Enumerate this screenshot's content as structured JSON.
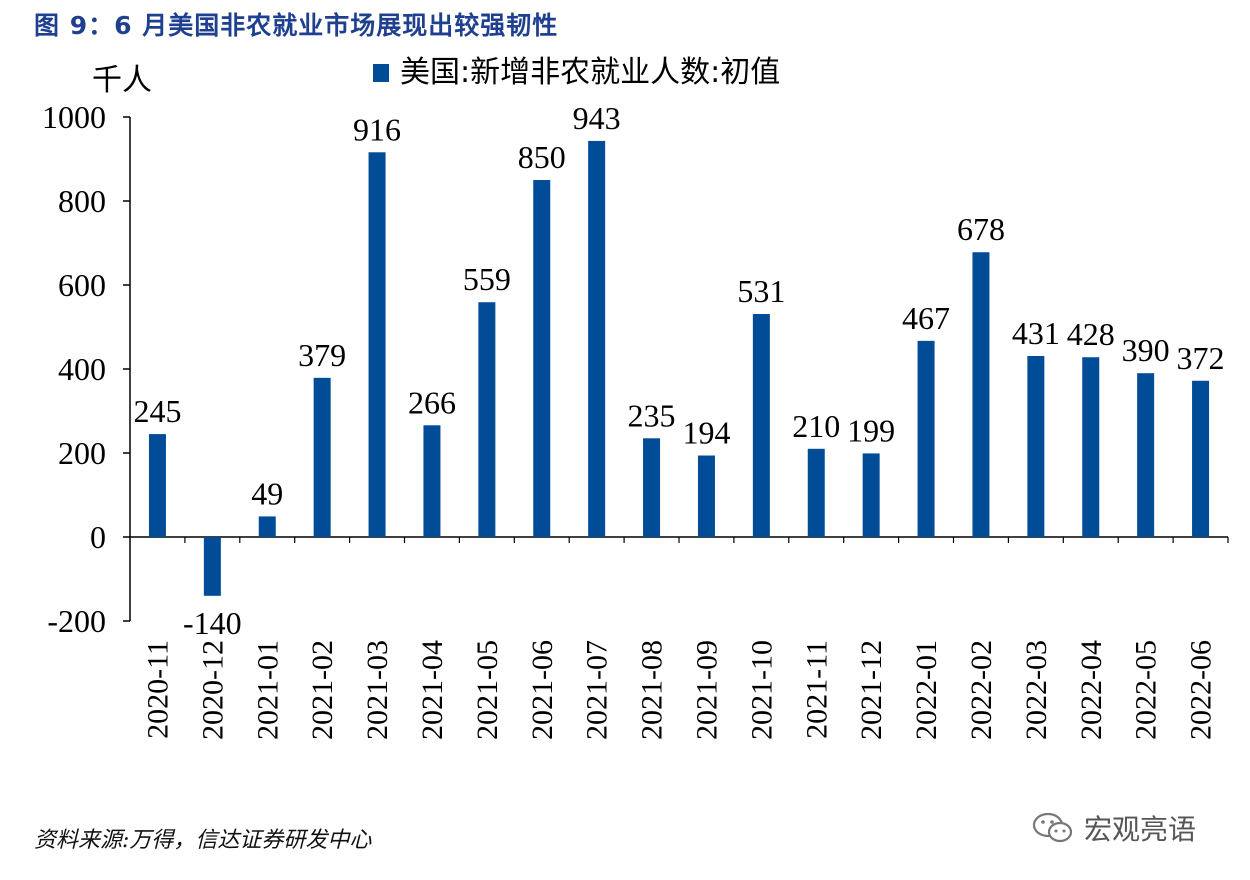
{
  "figure": {
    "title": "图 9：6 月美国非农就业市场展现出较强韧性",
    "source": "资料来源:万得，信达证券研发中心",
    "watermark": "宏观亮语"
  },
  "chart_data": {
    "type": "bar",
    "title": "",
    "ylabel": "千人",
    "xlabel": "",
    "ylim": [
      -200,
      1000
    ],
    "yticks": [
      -200,
      0,
      200,
      400,
      600,
      800,
      1000
    ],
    "grid": false,
    "legend_position": "top",
    "categories": [
      "2020-11",
      "2020-12",
      "2021-01",
      "2021-02",
      "2021-03",
      "2021-04",
      "2021-05",
      "2021-06",
      "2021-07",
      "2021-08",
      "2021-09",
      "2021-10",
      "2021-11",
      "2021-12",
      "2022-01",
      "2022-02",
      "2022-03",
      "2022-04",
      "2022-05",
      "2022-06"
    ],
    "series": [
      {
        "name": "美国:新增非农就业人数:初值",
        "color": "#004c97",
        "values": [
          245,
          -140,
          49,
          379,
          916,
          266,
          559,
          850,
          943,
          235,
          194,
          531,
          210,
          199,
          467,
          678,
          431,
          428,
          390,
          372
        ]
      }
    ]
  }
}
